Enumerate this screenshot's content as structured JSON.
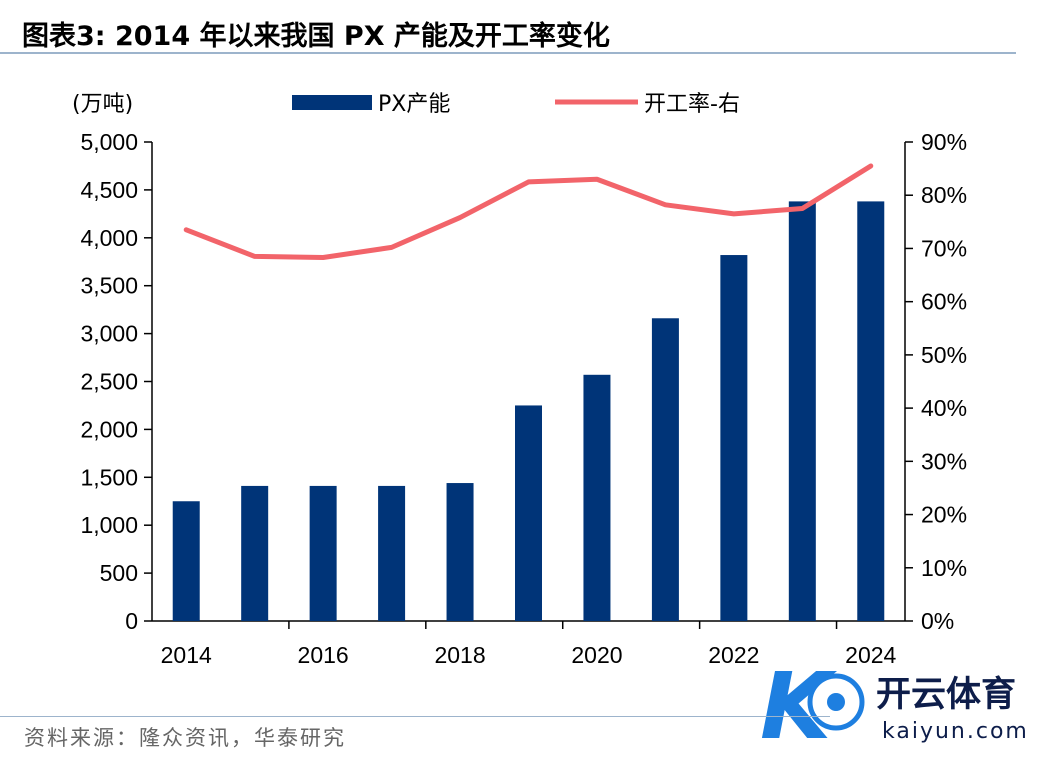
{
  "figure": {
    "title": "图表3:  2014 年以来我国 PX 产能及开工率变化",
    "source": "资料来源：隆众资讯，华泰研究"
  },
  "chart_data": {
    "type": "bar",
    "title": "图表3:  2014 年以来我国 PX 产能及开工率变化",
    "unit_label": "(万吨)",
    "categories": [
      "2014",
      "2015",
      "2016",
      "2017",
      "2018",
      "2019",
      "2020",
      "2021",
      "2022",
      "2023",
      "2024"
    ],
    "x_tick_labels": [
      "2014",
      "2016",
      "2018",
      "2020",
      "2022",
      "2024"
    ],
    "series": [
      {
        "name": "PX产能",
        "type": "bar",
        "axis": "left",
        "color": "#003478",
        "values": [
          1250,
          1410,
          1410,
          1410,
          1440,
          2250,
          2570,
          3160,
          3820,
          4380,
          4380
        ]
      },
      {
        "name": "开工率-右",
        "type": "line",
        "axis": "right",
        "color": "#f2646a",
        "values": [
          73.5,
          68.5,
          68.3,
          70.2,
          75.8,
          82.5,
          83.0,
          78.2,
          76.5,
          77.5,
          85.5
        ]
      }
    ],
    "y_left": {
      "min": 0,
      "max": 5000,
      "step": 500,
      "tick_labels": [
        "0",
        "500",
        "1,000",
        "1,500",
        "2,000",
        "2,500",
        "3,000",
        "3,500",
        "4,000",
        "4,500",
        "5,000"
      ]
    },
    "y_right": {
      "min": 0,
      "max": 90,
      "step": 10,
      "tick_labels": [
        "0%",
        "10%",
        "20%",
        "30%",
        "40%",
        "50%",
        "60%",
        "70%",
        "80%",
        "90%"
      ]
    },
    "legend_placement": "top",
    "grid": false
  },
  "watermark": {
    "brand": "开云体育",
    "domain": "kaiyun.com",
    "mark": "K"
  }
}
